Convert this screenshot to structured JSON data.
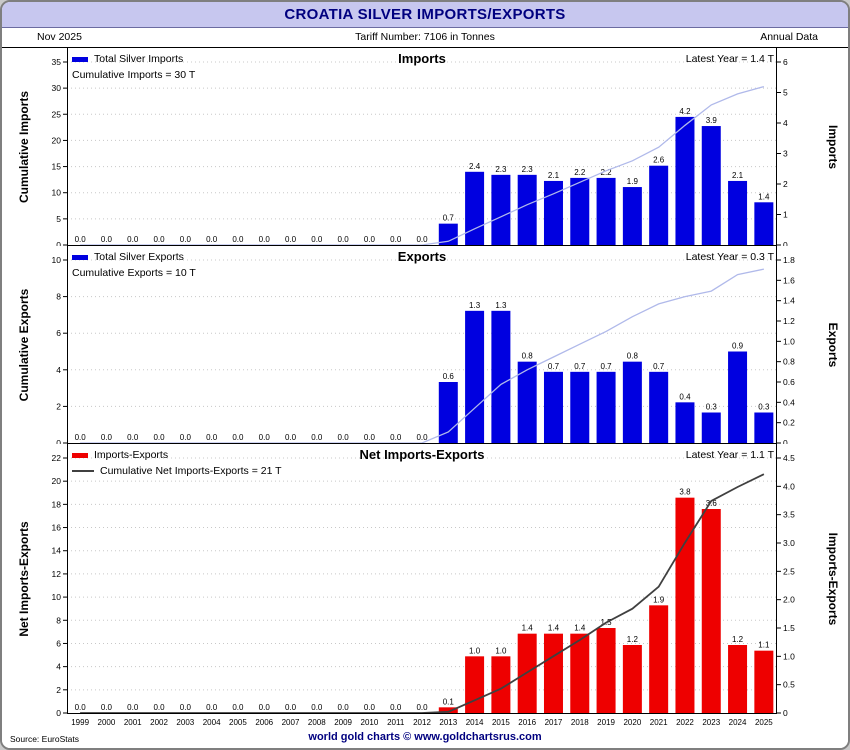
{
  "header": {
    "title": "CROATIA SILVER IMPORTS/EXPORTS",
    "date_label": "Nov  2025",
    "tariff_label": "Tariff Number: 7106 in Tonnes",
    "frequency_label": "Annual Data"
  },
  "footer": {
    "source": "Source: EuroStats",
    "brand": "world gold charts © www.goldchartsrus.com"
  },
  "colors": {
    "title_bg": "#c7c7ef",
    "navy": "#00007f",
    "import_export_bar_blue": "#0000e0",
    "net_bar_red": "#ee0000",
    "cumulative_line_light": "#b0b9ea",
    "cumulative_line_dark": "#404040",
    "gridline": "#c8c8c8"
  },
  "chart_data": [
    {
      "type": "bar",
      "panel_title": "Imports",
      "legend_label": "Total Silver Imports",
      "cumulative_label": "Cumulative Imports = 30 T",
      "latest_label": "Latest Year = 1.4 T",
      "cumulative_total": 30,
      "latest_value": 1.4,
      "left_axis": {
        "label": "Cumulative Imports",
        "max": 35,
        "step": 5,
        "decimals": 0
      },
      "right_axis": {
        "label": "Imports",
        "max": 6,
        "step": 1,
        "decimals": 0
      },
      "bar_color": "#0000e0",
      "line_color": "#b0b9ea",
      "categories": [
        1999,
        2000,
        2001,
        2002,
        2003,
        2004,
        2005,
        2006,
        2007,
        2008,
        2009,
        2010,
        2011,
        2012,
        2013,
        2014,
        2015,
        2016,
        2017,
        2018,
        2019,
        2020,
        2021,
        2022,
        2023,
        2024,
        2025
      ],
      "values": [
        0.0,
        0.0,
        0.0,
        0.0,
        0.0,
        0.0,
        0.0,
        0.0,
        0.0,
        0.0,
        0.0,
        0.0,
        0.0,
        0.0,
        0.7,
        2.4,
        2.3,
        2.3,
        2.1,
        2.2,
        2.2,
        1.9,
        2.6,
        4.2,
        3.9,
        2.1,
        1.4
      ]
    },
    {
      "type": "bar",
      "panel_title": "Exports",
      "legend_label": "Total Silver Exports",
      "cumulative_label": "Cumulative Exports = 10 T",
      "latest_label": "Latest Year = 0.3 T",
      "cumulative_total": 10,
      "latest_value": 0.3,
      "left_axis": {
        "label": "Cumulative Exports",
        "max": 10,
        "step": 2,
        "decimals": 0
      },
      "right_axis": {
        "label": "Exports",
        "max": 1.8,
        "step": 0.2,
        "decimals": 1
      },
      "bar_color": "#0000e0",
      "line_color": "#b0b9ea",
      "categories": [
        1999,
        2000,
        2001,
        2002,
        2003,
        2004,
        2005,
        2006,
        2007,
        2008,
        2009,
        2010,
        2011,
        2012,
        2013,
        2014,
        2015,
        2016,
        2017,
        2018,
        2019,
        2020,
        2021,
        2022,
        2023,
        2024,
        2025
      ],
      "values": [
        0.0,
        0.0,
        0.0,
        0.0,
        0.0,
        0.0,
        0.0,
        0.0,
        0.0,
        0.0,
        0.0,
        0.0,
        0.0,
        0.0,
        0.6,
        1.3,
        1.3,
        0.8,
        0.7,
        0.7,
        0.7,
        0.8,
        0.7,
        0.4,
        0.3,
        0.9,
        0.3
      ]
    },
    {
      "type": "bar",
      "panel_title": "Net Imports-Exports",
      "legend_label": "Imports-Exports",
      "cumulative_label": "Cumulative Net Imports-Exports = 21 T",
      "latest_label": "Latest Year = 1.1 T",
      "cumulative_total": 21,
      "latest_value": 1.1,
      "left_axis": {
        "label": "Net Imports-Exports",
        "max": 22,
        "step": 2,
        "decimals": 0
      },
      "right_axis": {
        "label": "Imports-Exports",
        "max": 4.5,
        "step": 0.5,
        "decimals": 1
      },
      "bar_color": "#ee0000",
      "line_color": "#404040",
      "categories": [
        1999,
        2000,
        2001,
        2002,
        2003,
        2004,
        2005,
        2006,
        2007,
        2008,
        2009,
        2010,
        2011,
        2012,
        2013,
        2014,
        2015,
        2016,
        2017,
        2018,
        2019,
        2020,
        2021,
        2022,
        2023,
        2024,
        2025
      ],
      "values": [
        0.0,
        0.0,
        0.0,
        0.0,
        0.0,
        0.0,
        0.0,
        0.0,
        0.0,
        0.0,
        0.0,
        0.0,
        0.0,
        0.0,
        0.1,
        1.0,
        1.0,
        1.4,
        1.4,
        1.4,
        1.5,
        1.2,
        1.9,
        3.8,
        3.6,
        1.2,
        1.1
      ]
    }
  ]
}
